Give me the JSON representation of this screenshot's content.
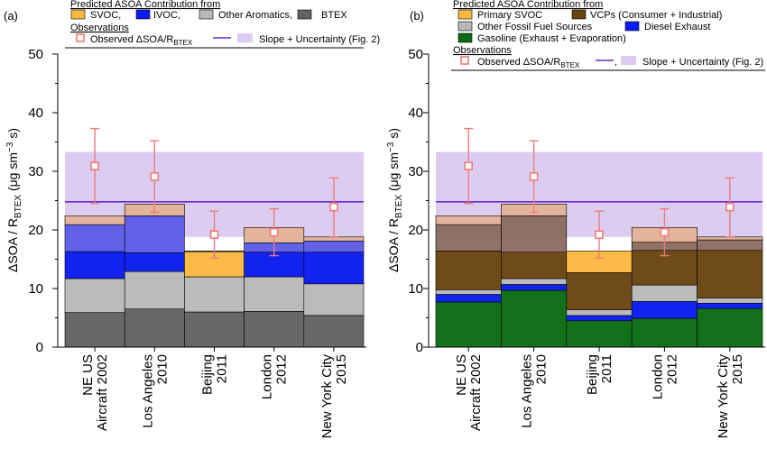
{
  "panels": [
    {
      "panel_label": "(a)",
      "legend": {
        "predicted_title": "Predicted ASOA Contribution from",
        "items": [
          {
            "label": "SVOC,",
            "color": "#f9b940"
          },
          {
            "label": "IVOC,",
            "color": "#0a1cf0"
          },
          {
            "label": "Other Aromatics,",
            "color": "#b9b9b9"
          },
          {
            "label": "BTEX",
            "color": "#636363"
          }
        ],
        "observations_title": "Observations",
        "obs_label_main": "Observed ΔSOA/R",
        "obs_label_sub": "BTEX",
        "slope_label": "Slope + Uncertainty (Fig. 2)"
      }
    },
    {
      "panel_label": "(b)",
      "legend": {
        "predicted_title": "Predicted ASOA Contribution from",
        "items": [
          {
            "label": "Primary SVOC",
            "color": "#f9b940"
          },
          {
            "label": "VCPs (Consumer + Industrial)",
            "color": "#6a4513"
          },
          {
            "label": "Other Fossil Fuel Sources",
            "color": "#b9b9b9"
          },
          {
            "label": "Diesel Exhaust",
            "color": "#0a1cf0"
          },
          {
            "label": "Gasoline (Exhaust + Evaporation)",
            "color": "#0b6b14"
          }
        ],
        "observations_title": "Observations",
        "obs_label_main": "Observed ΔSOA/R",
        "obs_label_sub": "BTEX",
        "slope_sep": ",",
        "slope_label": "Slope + Uncertainty (Fig. 2)"
      }
    }
  ],
  "y_axis": {
    "label_main": "ΔSOA / R",
    "label_sub": "BTEX",
    "label_units": " (μg sm",
    "label_exp": "−3",
    "label_tail": " s)"
  },
  "colors": {
    "obs": "#f07a7a",
    "slope": "#6a2bc7",
    "band": "#dcccf0",
    "resid": "#e3b49c",
    "tan": "#d9a98a"
  },
  "chart_data": [
    {
      "type": "bar",
      "stacked": true,
      "ylim": [
        0,
        50
      ],
      "yticks": [
        0,
        10,
        20,
        30,
        40,
        50
      ],
      "categories": [
        [
          "NE US",
          "Aircraft 2002"
        ],
        [
          "Los Angeles",
          "2010"
        ],
        [
          "Beijing",
          "2011"
        ],
        [
          "London",
          "2012"
        ],
        [
          "New York City",
          "2015"
        ]
      ],
      "series": [
        {
          "name": "BTEX",
          "color": "#636363",
          "values": [
            5.9,
            6.5,
            6.0,
            6.1,
            5.4
          ]
        },
        {
          "name": "Other Aromatics,",
          "color": "#b9b9b9",
          "values": [
            5.8,
            6.4,
            6.0,
            5.9,
            5.4
          ]
        },
        {
          "name": "IVOC,",
          "color": "#0a1cf0",
          "values": [
            4.6,
            3.2,
            0.0,
            4.2,
            5.4
          ]
        },
        {
          "name": "SVOC,",
          "color": "#f9b940",
          "values": [
            0.0,
            0.0,
            4.3,
            0.0,
            0.0
          ]
        }
      ],
      "residual_tops": [
        20.9,
        22.4,
        16.3,
        17.8,
        18.1
      ],
      "tan_tops": [
        22.4,
        24.4,
        16.4,
        20.4,
        18.8
      ],
      "observed": [
        30.9,
        29.1,
        19.2,
        19.6,
        23.9
      ],
      "observed_low": [
        24.5,
        23.0,
        15.2,
        15.6,
        18.8
      ],
      "observed_high": [
        37.3,
        35.2,
        23.2,
        23.6,
        28.9
      ],
      "slope": 24.8,
      "slope_band": [
        18.8,
        33.3
      ]
    },
    {
      "type": "bar",
      "stacked": true,
      "ylim": [
        0,
        50
      ],
      "yticks": [
        0,
        10,
        20,
        30,
        40,
        50
      ],
      "categories": [
        [
          "NE US",
          "Aircraft 2002"
        ],
        [
          "Los Angeles",
          "2010"
        ],
        [
          "Beijing",
          "2011"
        ],
        [
          "London",
          "2012"
        ],
        [
          "New York City",
          "2015"
        ]
      ],
      "series": [
        {
          "name": "Gasoline (Exhaust + Evaporation)",
          "color": "#0b6b14",
          "values": [
            7.7,
            9.7,
            4.5,
            4.9,
            6.6
          ]
        },
        {
          "name": "Diesel Exhaust",
          "color": "#0a1cf0",
          "values": [
            1.3,
            1.0,
            0.9,
            2.9,
            0.9
          ]
        },
        {
          "name": "Other Fossil Fuel Sources",
          "color": "#b9b9b9",
          "values": [
            0.8,
            1.0,
            1.0,
            2.8,
            0.9
          ]
        },
        {
          "name": "VCPs (Consumer + Industrial)",
          "color": "#6a4513",
          "values": [
            6.6,
            4.5,
            6.3,
            5.9,
            8.1
          ]
        },
        {
          "name": "Primary SVOC",
          "color": "#f9b940",
          "values": [
            0.0,
            0.0,
            3.7,
            0.0,
            0.0
          ]
        }
      ],
      "residual_tops": [
        20.9,
        22.4,
        16.4,
        17.9,
        18.3
      ],
      "tan_tops": [
        22.4,
        24.4,
        16.4,
        20.4,
        18.8
      ],
      "observed": [
        30.9,
        29.1,
        19.2,
        19.6,
        23.9
      ],
      "observed_low": [
        24.5,
        23.0,
        15.2,
        15.6,
        18.8
      ],
      "observed_high": [
        37.3,
        35.2,
        23.2,
        23.6,
        28.9
      ],
      "slope": 24.8,
      "slope_band": [
        18.8,
        33.3
      ]
    }
  ]
}
